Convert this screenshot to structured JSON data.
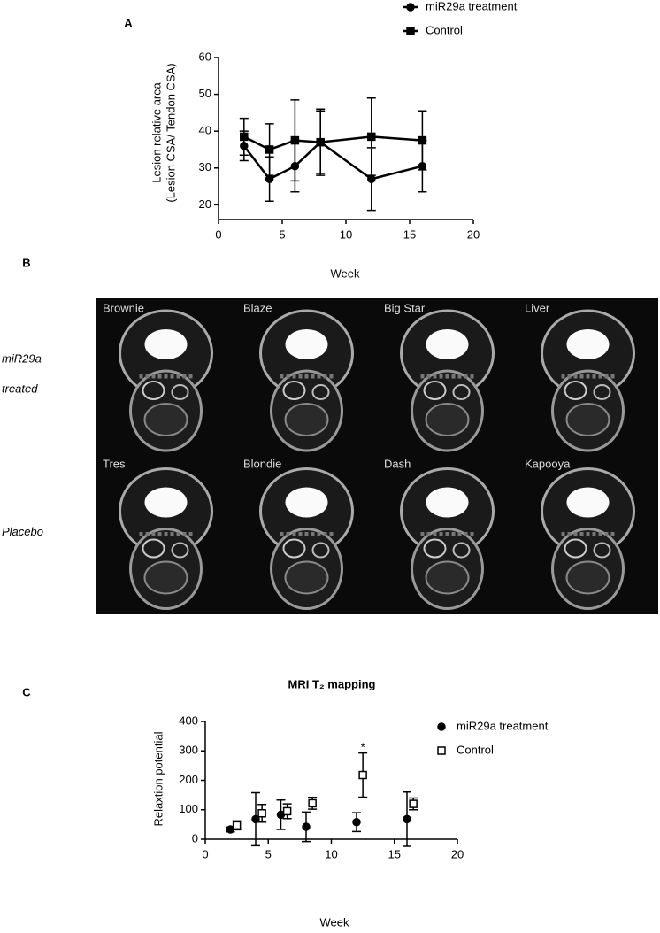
{
  "chart_data": [
    {
      "type": "line",
      "panel": "A",
      "xlabel": "Week",
      "ylabel": [
        "Lesion relative area",
        "(Lesion CSA/ Tendon CSA)"
      ],
      "x": [
        2,
        4,
        6,
        8,
        12,
        16
      ],
      "xlim": [
        0,
        20
      ],
      "xticks": [
        0,
        5,
        10,
        15,
        20
      ],
      "ylim": [
        16,
        60
      ],
      "yticks": [
        20,
        30,
        40,
        50,
        60
      ],
      "legend": "top-right",
      "series": [
        {
          "name": "miR29a treatment",
          "color": "#000000",
          "marker": "circle",
          "filled": true,
          "values": [
            36,
            27,
            30.5,
            37,
            27,
            30.5
          ],
          "errors": [
            4,
            6,
            7,
            9,
            8.5,
            7
          ]
        },
        {
          "name": "Control",
          "color": "#000000",
          "marker": "square",
          "filled": true,
          "values": [
            38.5,
            35,
            37.5,
            37,
            38.5,
            37.5
          ],
          "errors": [
            5,
            7,
            11,
            8.5,
            10.5,
            8
          ]
        }
      ]
    },
    {
      "type": "scatter",
      "panel": "C",
      "title": "MRI T₂ mapping",
      "xlabel": "Week",
      "ylabel": [
        "Relaxtion potential"
      ],
      "xlim": [
        0,
        20
      ],
      "xticks": [
        0,
        5,
        10,
        15,
        20
      ],
      "ylim": [
        0,
        400
      ],
      "yticks": [
        0,
        100,
        200,
        300,
        400
      ],
      "legend": "top-right",
      "annotations": [
        {
          "text": "*",
          "x": 12.5,
          "y": 310
        }
      ],
      "series": [
        {
          "name": "miR29a treatment",
          "color": "#000000",
          "marker": "circle",
          "filled": true,
          "x": [
            2,
            4,
            6,
            8,
            12,
            16
          ],
          "values": [
            33,
            68,
            83,
            42,
            58,
            68
          ],
          "errors": [
            8,
            90,
            50,
            50,
            32,
            92
          ]
        },
        {
          "name": "Control",
          "color": "#000000",
          "marker": "square",
          "filled": false,
          "x": [
            2.5,
            4.5,
            6.5,
            8.5,
            12.5,
            16.5
          ],
          "values": [
            47,
            88,
            95,
            122,
            218,
            120
          ],
          "errors": [
            15,
            30,
            25,
            20,
            75,
            20
          ]
        }
      ]
    }
  ],
  "mri": {
    "panel": "B",
    "rows": [
      {
        "label": [
          "miR29a",
          "treated"
        ],
        "subjects": [
          "Brownie",
          "Blaze",
          "Big Star",
          "Liver"
        ]
      },
      {
        "label": [
          "Placebo"
        ],
        "subjects": [
          "Tres",
          "Blondie",
          "Dash",
          "Kapooya"
        ]
      }
    ]
  }
}
